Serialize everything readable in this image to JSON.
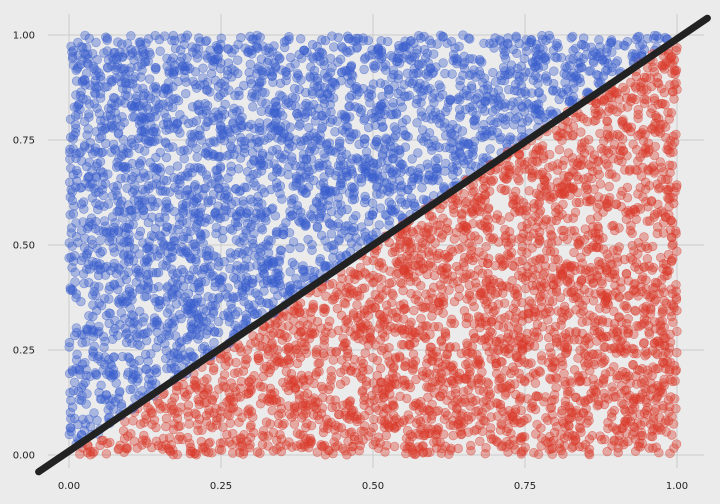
{
  "chart_data": {
    "type": "scatter",
    "title": "",
    "xlabel": "",
    "ylabel": "",
    "xlim": [
      -0.05,
      1.05
    ],
    "ylim": [
      -0.04,
      1.05
    ],
    "grid": true,
    "legend": "none",
    "x_ticks": [
      "0.00",
      "0.25",
      "0.50",
      "0.75",
      "1.00"
    ],
    "y_ticks": [
      "0.00",
      "0.25",
      "0.50",
      "0.75",
      "1.00"
    ],
    "x_tick_values": [
      0,
      0.25,
      0.5,
      0.75,
      1.0
    ],
    "y_tick_values": [
      0,
      0.25,
      0.5,
      0.75,
      1.0
    ],
    "points_per_series": 3000,
    "series": [
      {
        "region": "above y = x",
        "color": "#3a5fcd",
        "x_range": [
          0,
          1
        ],
        "y_range": [
          0,
          1
        ]
      },
      {
        "region": "below y = x",
        "color": "#d93a2b",
        "x_range": [
          0,
          1
        ],
        "y_range": [
          0,
          1
        ]
      }
    ],
    "line": {
      "from": [
        -0.05,
        -0.04
      ],
      "to": [
        1.05,
        1.04
      ],
      "color": "#222222"
    }
  }
}
